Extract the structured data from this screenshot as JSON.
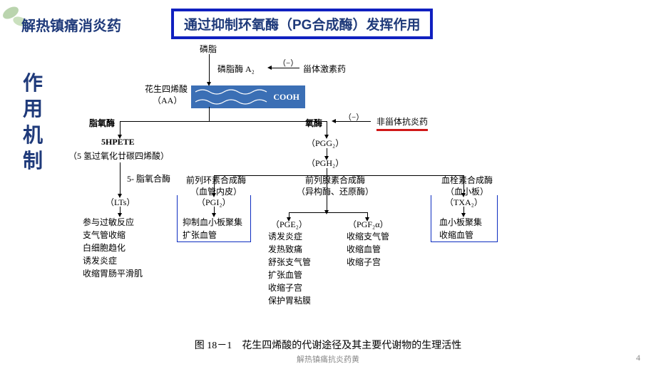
{
  "header": {
    "left_title": "解热镇痛消炎药",
    "box_title": "通过抑制环氧酶（PG合成酶）发挥作用"
  },
  "side_label": "作\n用\n机\n制",
  "nodes": {
    "phospholipid": "磷脂",
    "phospholipase": "磷脂酶 A₂",
    "steroid": "甾体激素药",
    "aa1": "花生四烯酸",
    "aa2": "（AA）",
    "cooh": "COOH",
    "lox": "脂氧酶",
    "cox": "氧酶",
    "nsaid": "非甾体抗炎药",
    "hpete1": "5HPETE",
    "hpete2": "（5 氢过氧化廿碳四烯酸）",
    "pgg2": "（PGG₂）",
    "pgh2": "（PGH₂）",
    "lox5": "5- 脂氧合酶",
    "pgi_synth1": "前列环素合成酶",
    "pgi_synth2": "（血管内皮）",
    "pg_synth1": "前列腺素合成酶",
    "pg_synth2": "（异构酶、还原酶）",
    "txa_synth1": "血栓素合成酶",
    "txa_synth2": "（血小板）",
    "lta": "（LTs）",
    "lta_eff": "参与过敏反应\n支气管收缩\n白细胞趋化\n诱发炎症\n收缩胃肠平滑肌",
    "pgi2": "（PGI₂）",
    "pgi2_eff": "抑制血小板聚集\n扩张血管",
    "pge2": "（PGE₂）",
    "pge2_eff": "诱发炎症\n发热致痛\n舒张支气管\n扩张血管\n收缩子宫\n保护胃粘膜",
    "pgf2a": "（PGF₂α）",
    "pgf2a_eff": "收缩支气管\n收缩血管\n收缩子宫",
    "txa2": "（TXA₂）",
    "txa2_eff": "血小板聚集\n收缩血管",
    "minus": "（−）"
  },
  "caption": "图 18－1　花生四烯酸的代谢途径及其主要代谢物的生理活性",
  "footer": "解热镇痛抗炎药黄",
  "page": "4",
  "colors": {
    "title": "#1f3a7a",
    "border": "#1020c0",
    "bluebox": "#3b6fb5",
    "redline": "#d01818"
  }
}
